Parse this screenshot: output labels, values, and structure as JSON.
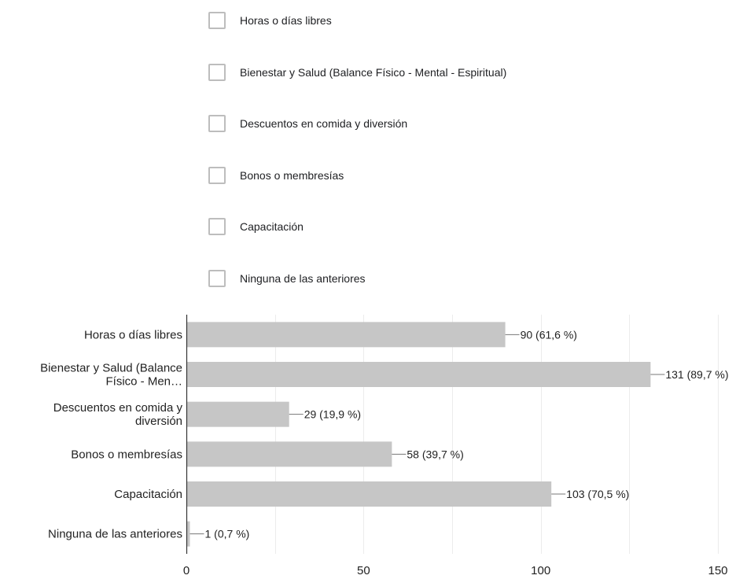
{
  "options": [
    {
      "label": "Horas o días libres"
    },
    {
      "label": "Bienestar y Salud (Balance Físico - Mental - Espiritual)"
    },
    {
      "label": "Descuentos en comida y diversión"
    },
    {
      "label": "Bonos o membresías"
    },
    {
      "label": "Capacitación"
    },
    {
      "label": "Ninguna de las anteriores"
    }
  ],
  "chart_data": {
    "type": "bar",
    "orientation": "horizontal",
    "categories": [
      [
        "Horas o días libres"
      ],
      [
        "Bienestar y Salud (Balance",
        "Físico - Men…"
      ],
      [
        "Descuentos en comida y",
        "diversión"
      ],
      [
        "Bonos o membresías"
      ],
      [
        "Capacitación"
      ],
      [
        "Ninguna de las anteriores"
      ]
    ],
    "values": [
      90,
      131,
      29,
      58,
      103,
      1
    ],
    "data_labels": [
      "90 (61,6 %)",
      "131 (89,7 %)",
      "29 (19,9 %)",
      "58 (39,7 %)",
      "103 (70,5 %)",
      "1 (0,7 %)"
    ],
    "xlim": [
      0,
      150
    ],
    "xticks": [
      0,
      50,
      100,
      150
    ],
    "grid": true,
    "bar_color": "#c6c6c6",
    "grid_color": "#ececec",
    "axis_color": "#333333",
    "text_color": "#222222"
  }
}
